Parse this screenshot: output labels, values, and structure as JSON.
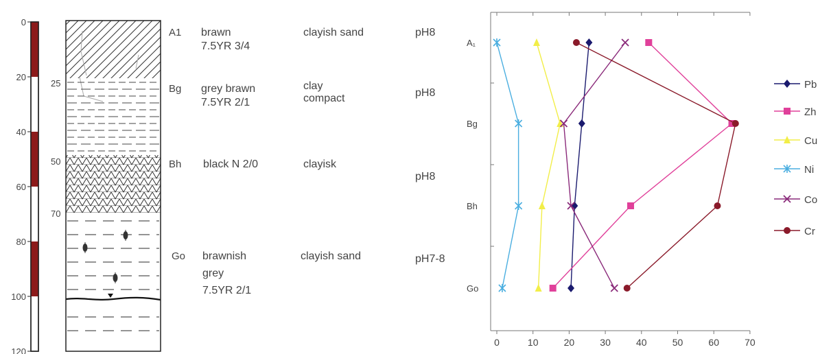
{
  "profile": {
    "depth_ticks": [
      "0",
      "20",
      "40",
      "60",
      "80",
      "100",
      "120"
    ],
    "inner_depth_labels": [
      "25",
      "50",
      "70"
    ],
    "horizons": [
      {
        "code": "A1",
        "color_desc": [
          "brawn",
          "7.5YR 3/4"
        ],
        "texture": [
          "clayish sand"
        ],
        "ph": "pH8"
      },
      {
        "code": "Bg",
        "color_desc": [
          "grey brawn",
          "7.5YR 2/1"
        ],
        "texture": [
          "clay",
          "compact"
        ],
        "ph": "pH8"
      },
      {
        "code": "Bh",
        "color_desc": [
          "black N 2/0"
        ],
        "texture": [
          "clayisk"
        ],
        "ph": "pH8"
      },
      {
        "code": "Go",
        "color_desc": [
          "brawnish",
          "grey",
          "7.5YR 2/1"
        ],
        "texture": [
          "clayish sand"
        ],
        "ph": "pH7-8"
      }
    ]
  },
  "chart_data": {
    "type": "line",
    "orientation": "depth-profile",
    "categories": [
      "A₁",
      "Bg",
      "Bh",
      "Go"
    ],
    "x": {
      "ticks": [
        "0",
        "10",
        "20",
        "30",
        "40",
        "50",
        "60",
        "70"
      ],
      "range": [
        0,
        70
      ]
    },
    "series": [
      {
        "name": "Pb",
        "color": "#1a1a6e",
        "marker": "diamond",
        "values": [
          25.5,
          23.5,
          21.5,
          20.5
        ]
      },
      {
        "name": "Zh",
        "color": "#e0409a",
        "marker": "square",
        "values": [
          42,
          65,
          37,
          15.5
        ]
      },
      {
        "name": "Cu",
        "color": "#f2ee48",
        "marker": "triangle",
        "values": [
          11,
          17.5,
          12.5,
          11.5
        ]
      },
      {
        "name": "Ni",
        "color": "#4aaee0",
        "marker": "star",
        "values": [
          0,
          6,
          6,
          1.5
        ]
      },
      {
        "name": "Co",
        "color": "#8a2a7a",
        "marker": "x",
        "values": [
          35.5,
          18.5,
          20.5,
          32.5
        ]
      },
      {
        "name": "Cr",
        "color": "#8a1a2a",
        "marker": "circle",
        "values": [
          22,
          66,
          61,
          36
        ]
      }
    ],
    "legend_position": "right",
    "grid": false
  }
}
